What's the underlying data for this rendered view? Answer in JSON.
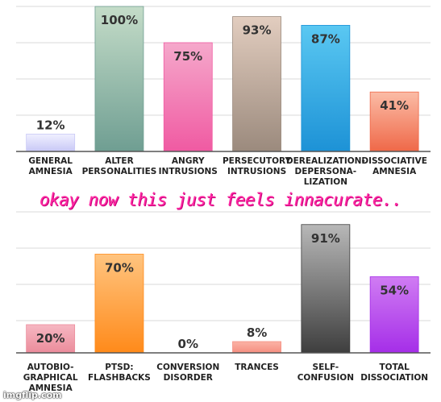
{
  "chart_data": [
    {
      "type": "bar",
      "categories": [
        "GENERAL AMNESIA",
        "ALTER PERSONALITIES",
        "ANGRY INTRUSIONS",
        "PERSECUTORY INTRUSIONS",
        "DEREALIZATION-DEPERSONA-LIZATION",
        "DISSOCIATIVE AMNESIA"
      ],
      "category_lines": [
        [
          "GENERAL",
          "AMNESIA"
        ],
        [
          "ALTER",
          "PERSONALITIES"
        ],
        [
          "ANGRY",
          "INTRUSIONS"
        ],
        [
          "PERSECUTORY",
          "INTRUSIONS"
        ],
        [
          "DEREALIZATION-",
          "DEPERSONA-",
          "LIZATION"
        ],
        [
          "DISSOCIATIVE",
          "AMNESIA"
        ]
      ],
      "values": [
        12,
        100,
        75,
        93,
        87,
        41
      ],
      "value_labels": [
        "12%",
        "100%",
        "75%",
        "93%",
        "87%",
        "41%"
      ],
      "colors": [
        [
          "#f0f0ff",
          "#c8c8f6"
        ],
        [
          "#c4dcc8",
          "#6f9e92"
        ],
        [
          "#f5a8cb",
          "#f05aa2"
        ],
        [
          "#e2cdbf",
          "#9b8a7d"
        ],
        [
          "#5ac8f2",
          "#1d92d6"
        ],
        [
          "#fbbca6",
          "#ef6848"
        ]
      ],
      "ylim": [
        0,
        100
      ],
      "grid": true
    },
    {
      "type": "bar",
      "categories": [
        "AUTOBIO-GRAPHICAL AMNESIA",
        "PTSD: FLASHBACKS",
        "CONVERSION DISORDER",
        "TRANCES",
        "SELF-CONFUSION",
        "TOTAL DISSOCIATION"
      ],
      "category_lines": [
        [
          "AUTOBIO-",
          "GRAPHICAL",
          "AMNESIA"
        ],
        [
          "PTSD:",
          "FLASHBACKS"
        ],
        [
          "CONVERSION",
          "DISORDER"
        ],
        [
          "TRANCES"
        ],
        [
          "SELF-",
          "CONFUSION"
        ],
        [
          "TOTAL",
          "DISSOCIATION"
        ]
      ],
      "values": [
        20,
        70,
        0,
        8,
        91,
        54
      ],
      "value_labels": [
        "20%",
        "70%",
        "0%",
        "8%",
        "91%",
        "54%"
      ],
      "colors": [
        [
          "#f6b7c2",
          "#eb8c9b"
        ],
        [
          "#ffc47f",
          "#ff8a1a"
        ],
        [
          "#dddddd",
          "#bbbbbb"
        ],
        [
          "#fbb3a6",
          "#f58e80"
        ],
        [
          "#b8b8b8",
          "#3e3e3e"
        ],
        [
          "#d07cf3",
          "#a52ee8"
        ]
      ],
      "ylim": [
        0,
        100
      ],
      "grid": true
    }
  ],
  "caption": "okay now this just feels innacurate..",
  "watermark": "imgflip.com"
}
